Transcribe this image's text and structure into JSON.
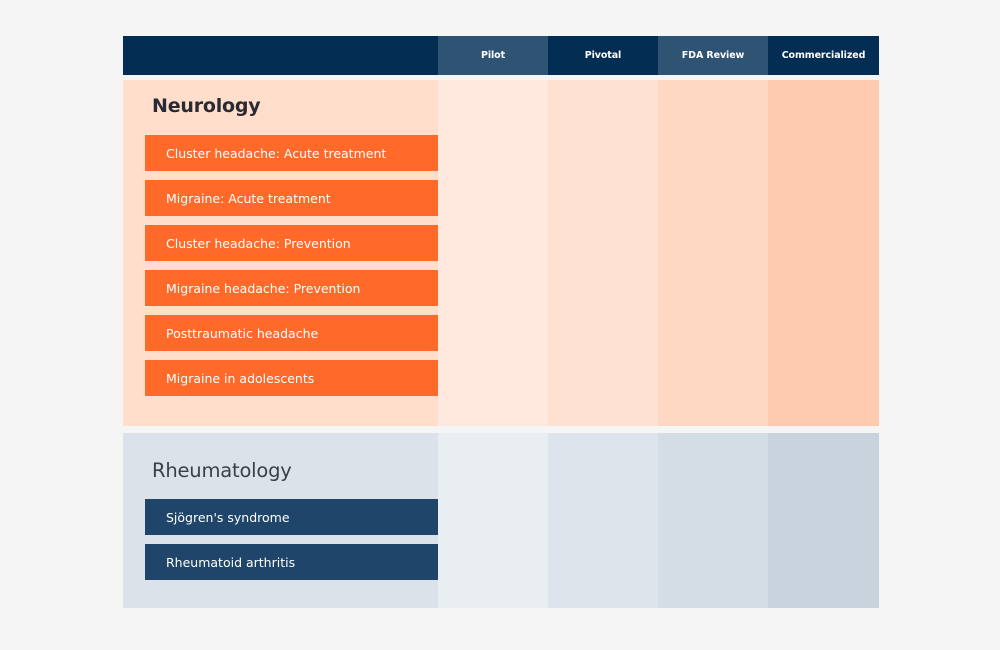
{
  "colors": {
    "header_dark": "#032d52",
    "header_light": "#2e5373",
    "neurology_accent": "#ff6a2a",
    "rheumatology_accent": "#1f466a"
  },
  "header": {
    "stages": [
      "Pilot",
      "Pivotal",
      "FDA Review",
      "Commercialized"
    ]
  },
  "sections": [
    {
      "title": "Neurology",
      "items": [
        "Cluster headache: Acute treatment",
        "Migraine: Acute treatment",
        "Cluster headache: Prevention",
        "Migraine headache: Prevention",
        "Posttraumatic headache",
        "Migraine in adolescents"
      ]
    },
    {
      "title": "Rheumatology",
      "items": [
        "Sjögren's syndrome",
        "Rheumatoid arthritis"
      ]
    }
  ]
}
